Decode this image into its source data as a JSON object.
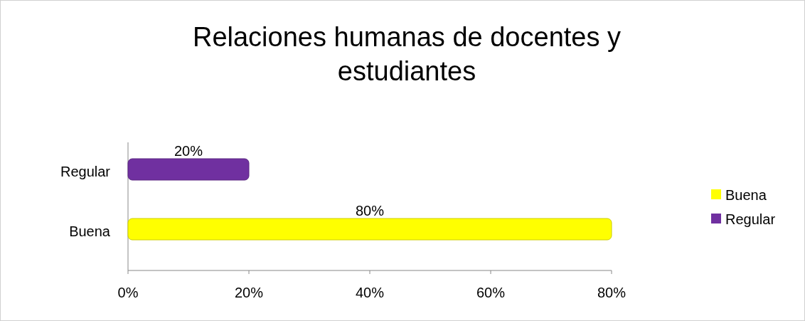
{
  "chart_data": {
    "type": "bar",
    "orientation": "horizontal",
    "title": "Relaciones humanas de docentes y estudiantes",
    "categories": [
      "Regular",
      "Buena"
    ],
    "series": [
      {
        "name": "Buena",
        "color": "#ffff00",
        "values": [
          null,
          80
        ],
        "value_labels": [
          null,
          "80%"
        ]
      },
      {
        "name": "Regular",
        "color": "#7030a0",
        "values": [
          20,
          null
        ],
        "value_labels": [
          "20%",
          null
        ]
      }
    ],
    "xlim": [
      0,
      80
    ],
    "xticks": [
      {
        "value": 0,
        "label": "0%"
      },
      {
        "value": 20,
        "label": "20%"
      },
      {
        "value": 40,
        "label": "40%"
      },
      {
        "value": 60,
        "label": "60%"
      },
      {
        "value": 80,
        "label": "80%"
      }
    ],
    "legend": "right",
    "grid": false
  }
}
